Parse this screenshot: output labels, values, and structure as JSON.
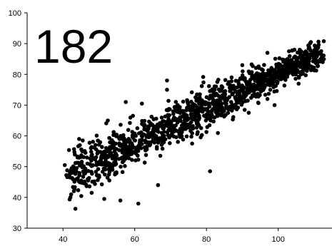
{
  "chart_data": {
    "type": "scatter",
    "title": "",
    "xlabel": "",
    "ylabel": "",
    "annotation": "182",
    "xlim": [
      30,
      115
    ],
    "ylim": [
      30,
      100
    ],
    "x_ticks": [
      40,
      60,
      80,
      100
    ],
    "y_ticks": [
      30,
      40,
      50,
      60,
      70,
      80,
      90,
      100
    ],
    "grid": false,
    "legend": "none",
    "marker_color": "#000000",
    "series": [
      {
        "trend": {
          "x_start": 41,
          "y_start": 47,
          "x_end": 112,
          "y_end": 87
        },
        "x_range": [
          41,
          112
        ],
        "spread": 4.5,
        "points": [
          [
            40.5,
            50.5
          ],
          [
            42.5,
            49
          ],
          [
            44.5,
            59
          ],
          [
            45.5,
            58.5
          ],
          [
            47,
            45.5
          ],
          [
            48,
            41.5
          ],
          [
            51.5,
            39.5
          ],
          [
            52.5,
            65
          ],
          [
            56,
            39
          ],
          [
            57.5,
            71
          ],
          [
            62,
            70.5
          ],
          [
            61,
            38
          ],
          [
            66.5,
            44
          ],
          [
            69,
            75
          ],
          [
            69,
            78
          ],
          [
            81,
            48.5
          ],
          [
            76,
            57.5
          ],
          [
            87,
            79
          ],
          [
            97,
            72
          ],
          [
            99,
            70
          ],
          [
            106,
            88
          ],
          [
            111,
            88.5
          ],
          [
            112,
            85
          ],
          [
            108,
            87
          ],
          [
            103,
            87.5
          ],
          [
            97,
            87
          ],
          [
            90,
            83
          ],
          [
            95,
            78.5
          ],
          [
            100,
            80
          ],
          [
            93,
            76
          ]
        ]
      }
    ]
  }
}
